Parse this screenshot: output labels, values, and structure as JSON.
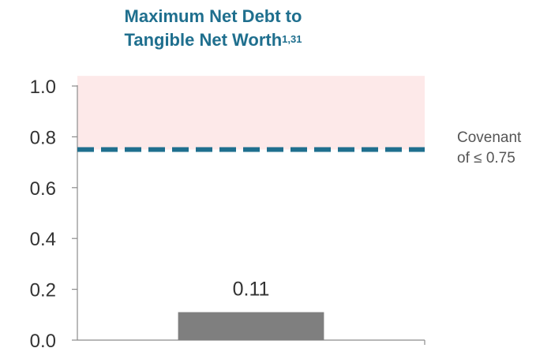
{
  "chart_data": {
    "type": "bar",
    "title_line1": "Maximum Net Debt to",
    "title_line2": "Tangible Net Worth",
    "title_superscript": "1,31",
    "categories": [
      ""
    ],
    "values": [
      0.11
    ],
    "data_labels": [
      "0.11"
    ],
    "ylim": [
      0.0,
      1.0
    ],
    "yticks": [
      0.0,
      0.2,
      0.4,
      0.6,
      0.8,
      1.0
    ],
    "ytick_labels": [
      "0.0",
      "0.2",
      "0.4",
      "0.6",
      "0.8",
      "1.0"
    ],
    "covenant_value": 0.75,
    "covenant_label_line1": "Covenant",
    "covenant_label_line2": "of ≤ 0.75",
    "shaded_region": [
      0.75,
      1.04
    ],
    "colors": {
      "bar": "#7f7f7f",
      "covenant_line": "#1f6f8e",
      "shaded_region": "#fde9e9",
      "axis": "#8c8c8c",
      "title": "#1f6f8e"
    }
  }
}
